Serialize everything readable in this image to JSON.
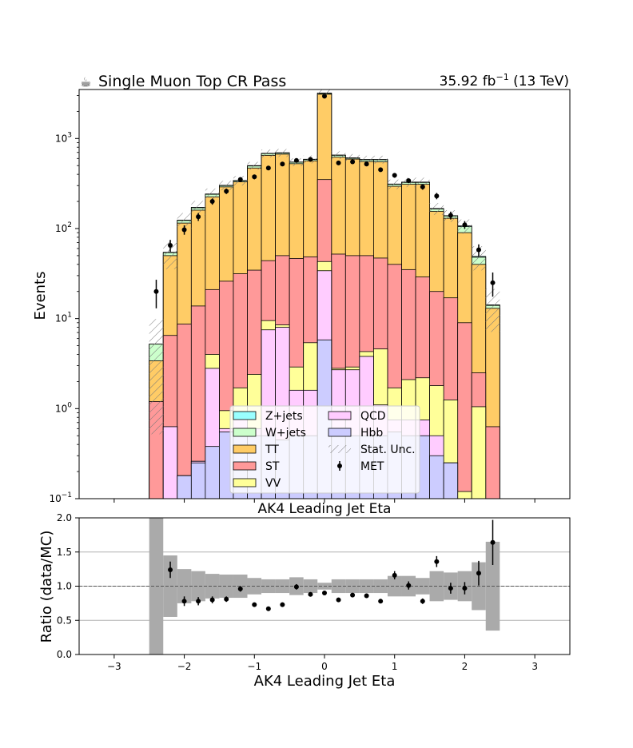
{
  "header": {
    "title": "Single Muon Top CR Pass",
    "title_icon": "coffee-cup-icon",
    "lumi_value": "35.92 fb",
    "lumi_exp": "−1",
    "lumi_energy": " (13 TeV)"
  },
  "chart_data": [
    {
      "type": "histogram-stacked-log",
      "ylabel": "Events",
      "xlabel": "AK4 Leading Jet Eta",
      "xlim": [
        -3.5,
        3.5
      ],
      "ylim": [
        0.1,
        3500
      ],
      "yscale": "log",
      "y_ticks": [
        {
          "value": 0.1,
          "base": "10",
          "exp": "−1"
        },
        {
          "value": 1,
          "base": "10",
          "exp": "0"
        },
        {
          "value": 10,
          "base": "10",
          "exp": "1"
        },
        {
          "value": 100,
          "base": "10",
          "exp": "2"
        },
        {
          "value": 1000,
          "base": "10",
          "exp": "3"
        }
      ],
      "x_ticks": [
        "−3",
        "−2",
        "−1",
        "0",
        "1",
        "2",
        "3"
      ],
      "x_tick_values": [
        -3,
        -2,
        -1,
        0,
        1,
        2,
        3
      ],
      "bin_edges": [
        -2.5,
        -2.3,
        -2.1,
        -1.9,
        -1.7,
        -1.5,
        -1.3,
        -1.1,
        -0.9,
        -0.7,
        -0.5,
        -0.3,
        -0.1,
        0.1,
        0.3,
        0.5,
        0.7,
        0.9,
        1.1,
        1.3,
        1.5,
        1.7,
        1.9,
        2.1,
        2.3,
        2.5
      ],
      "stack_cumulative": [
        {
          "name": "Hbb",
          "color": "#ccccff",
          "values": [
            0.1,
            0.1,
            0.18,
            0.25,
            0.38,
            0.55,
            0.5,
            0.5,
            0.5,
            0.45,
            0.5,
            0.5,
            5.8,
            0.5,
            0.5,
            0.5,
            0.5,
            0.55,
            0.5,
            0.5,
            0.3,
            0.25,
            0.1,
            0.1,
            0.1
          ]
        },
        {
          "name": "QCD",
          "color": "#ffccff",
          "values": [
            0.1,
            0.63,
            0.18,
            0.26,
            2.8,
            0.6,
            0.9,
            0.6,
            7.5,
            8.0,
            1.6,
            1.6,
            34.0,
            2.7,
            2.7,
            3.8,
            1.1,
            0.75,
            0.75,
            0.75,
            0.5,
            0.25,
            0.1,
            0.1,
            0.1
          ]
        },
        {
          "name": "VV",
          "color": "#ffff99",
          "values": [
            0.1,
            0.63,
            0.18,
            0.26,
            4.0,
            0.95,
            1.7,
            2.4,
            9.5,
            8.5,
            2.9,
            5.4,
            43.0,
            2.8,
            2.9,
            4.3,
            4.6,
            1.7,
            2.1,
            2.2,
            1.8,
            1.25,
            0.12,
            1.05,
            0.1
          ]
        },
        {
          "name": "ST",
          "color": "#ff9999",
          "values": [
            1.2,
            6.5,
            8.7,
            13.8,
            21.0,
            26.0,
            31.5,
            34.5,
            44.0,
            50.0,
            46.5,
            48.5,
            350.0,
            52.0,
            50.0,
            50.0,
            47.0,
            40.0,
            35.0,
            29.0,
            20.0,
            17.0,
            9.0,
            2.5,
            0.63
          ]
        },
        {
          "name": "TT",
          "color": "#ffcc66",
          "values": [
            3.4,
            50.0,
            115.0,
            160.0,
            225.0,
            290.0,
            330.0,
            470.0,
            650.0,
            670.0,
            525.0,
            565.0,
            3100.0,
            620.0,
            590.0,
            555.0,
            550.0,
            295.0,
            310.0,
            310.0,
            155.0,
            130.0,
            90.0,
            40.0,
            13.0
          ]
        },
        {
          "name": "W+jets",
          "color": "#ccffcc",
          "values": [
            5.2,
            54.0,
            123.0,
            170.0,
            240.0,
            300.0,
            340.0,
            495.0,
            680.0,
            690.0,
            545.0,
            585.0,
            3170.0,
            650.0,
            605.0,
            580.0,
            580.0,
            310.0,
            325.0,
            325.0,
            165.0,
            138.0,
            105.0,
            48.0,
            14.0
          ]
        },
        {
          "name": "Z+jets",
          "color": "#99ffff",
          "values": [
            5.2,
            54.5,
            124.0,
            172.0,
            242.0,
            302.0,
            342.0,
            500.0,
            685.0,
            695.0,
            548.0,
            588.0,
            3200.0,
            655.0,
            610.0,
            585.0,
            585.0,
            312.0,
            328.0,
            328.0,
            167.0,
            139.0,
            107.0,
            49.0,
            14.2
          ]
        }
      ],
      "stat_unc_rel": [
        0.9,
        0.35,
        0.2,
        0.18,
        0.15,
        0.12,
        0.12,
        0.1,
        0.1,
        0.1,
        0.1,
        0.1,
        0.08,
        0.1,
        0.1,
        0.1,
        0.1,
        0.12,
        0.12,
        0.12,
        0.15,
        0.15,
        0.18,
        0.3,
        0.5
      ],
      "data": {
        "name": "MET",
        "x": [
          -2.4,
          -2.2,
          -2.0,
          -1.8,
          -1.6,
          -1.4,
          -1.2,
          -1.0,
          -0.8,
          -0.6,
          -0.4,
          -0.2,
          0.0,
          0.2,
          0.4,
          0.6,
          0.8,
          1.0,
          1.2,
          1.4,
          1.6,
          1.8,
          2.0,
          2.2,
          2.4
        ],
        "y": [
          20,
          65,
          97,
          135,
          200,
          260,
          350,
          375,
          470,
          520,
          570,
          585,
          2950,
          535,
          550,
          520,
          450,
          390,
          340,
          290,
          230,
          140,
          110,
          58,
          25
        ],
        "yerr_rel": [
          0.35,
          0.15,
          0.12,
          0.1,
          0.08,
          0.07,
          0.06,
          0.06,
          0.05,
          0.05,
          0.05,
          0.05,
          0.02,
          0.05,
          0.05,
          0.05,
          0.05,
          0.06,
          0.06,
          0.07,
          0.08,
          0.1,
          0.1,
          0.15,
          0.3
        ]
      },
      "legend": {
        "placement": "lower-center",
        "entries": [
          {
            "name": "Z+jets",
            "kind": "fill",
            "color": "#99ffff"
          },
          {
            "name": "QCD",
            "kind": "fill",
            "color": "#ffccff"
          },
          {
            "name": "W+jets",
            "kind": "fill",
            "color": "#ccffcc"
          },
          {
            "name": "Hbb",
            "kind": "fill",
            "color": "#ccccff"
          },
          {
            "name": "TT",
            "kind": "fill",
            "color": "#ffcc66"
          },
          {
            "name": "Stat. Unc.",
            "kind": "hatch",
            "color": "#888888"
          },
          {
            "name": "ST",
            "kind": "fill",
            "color": "#ff9999"
          },
          {
            "name": "MET",
            "kind": "point",
            "color": "#000000"
          },
          {
            "name": "VV",
            "kind": "fill",
            "color": "#ffff99"
          }
        ]
      }
    },
    {
      "type": "ratio",
      "xlabel": "AK4 Leading Jet Eta",
      "ylabel": "Ratio (data/MC)",
      "xlim": [
        -3.5,
        3.5
      ],
      "ylim": [
        0.0,
        2.0
      ],
      "grid": "horizontal",
      "reference_line": 1.0,
      "y_ticks": [
        "0.0",
        "0.5",
        "1.0",
        "1.5",
        "2.0"
      ],
      "y_tick_values": [
        0.0,
        0.5,
        1.0,
        1.5,
        2.0
      ],
      "x_ticks": [
        "−3",
        "−2",
        "−1",
        "0",
        "1",
        "2",
        "3"
      ],
      "x_tick_values": [
        -3,
        -2,
        -1,
        0,
        1,
        2,
        3
      ],
      "band_half_width": [
        1.1,
        0.45,
        0.25,
        0.22,
        0.18,
        0.17,
        0.17,
        0.12,
        0.1,
        0.1,
        0.13,
        0.1,
        0.05,
        0.1,
        0.1,
        0.1,
        0.1,
        0.15,
        0.15,
        0.12,
        0.22,
        0.2,
        0.22,
        0.35,
        0.65
      ],
      "points": {
        "x": [
          -2.2,
          -2.0,
          -1.8,
          -1.6,
          -1.4,
          -1.2,
          -1.0,
          -0.8,
          -0.6,
          -0.4,
          -0.2,
          0.0,
          0.2,
          0.4,
          0.6,
          0.8,
          1.0,
          1.2,
          1.4,
          1.6,
          1.8,
          2.0,
          2.2,
          2.4
        ],
        "y": [
          1.24,
          0.78,
          0.78,
          0.8,
          0.81,
          0.96,
          0.73,
          0.67,
          0.73,
          0.99,
          0.88,
          0.9,
          0.8,
          0.87,
          0.86,
          0.78,
          1.16,
          1.01,
          0.78,
          1.36,
          0.97,
          0.97,
          1.19,
          1.64
        ],
        "yerr": [
          0.12,
          0.07,
          0.06,
          0.05,
          0.04,
          0.04,
          0.03,
          0.03,
          0.03,
          0.04,
          0.03,
          0.02,
          0.03,
          0.03,
          0.03,
          0.03,
          0.06,
          0.06,
          0.04,
          0.08,
          0.08,
          0.09,
          0.18,
          0.33
        ]
      }
    }
  ]
}
